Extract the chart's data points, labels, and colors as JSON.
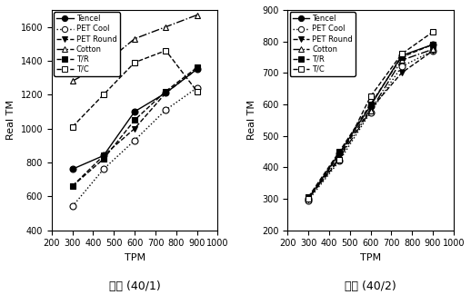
{
  "tpm": [
    300,
    450,
    600,
    750,
    900
  ],
  "left": {
    "title": "단사 (40/1)",
    "ylabel": "Real TM",
    "xlabel": "TPM",
    "ylim": [
      400,
      1700
    ],
    "yticks": [
      400,
      600,
      800,
      1000,
      1200,
      1400,
      1600
    ],
    "xlim": [
      200,
      1000
    ],
    "xticks": [
      200,
      300,
      400,
      500,
      600,
      700,
      800,
      900,
      1000
    ],
    "series": {
      "Tencel": {
        "y": [
          760,
          840,
          1100,
          1210,
          1350
        ],
        "marker": "o",
        "ms": 5,
        "mfc": "black",
        "mec": "black",
        "ls": "-",
        "lw": 1.0
      },
      "PET Cool": {
        "y": [
          540,
          760,
          930,
          1110,
          1240
        ],
        "marker": "o",
        "ms": 5,
        "mfc": "white",
        "mec": "black",
        "ls": ":",
        "lw": 1.0
      },
      "PET Round": {
        "y": [
          660,
          840,
          1000,
          1210,
          1350
        ],
        "marker": "v",
        "ms": 5,
        "mfc": "black",
        "mec": "black",
        "ls": "--",
        "lw": 1.0
      },
      "Cotton": {
        "y": [
          1280,
          1380,
          1530,
          1600,
          1670
        ],
        "marker": "^",
        "ms": 5,
        "mfc": "white",
        "mec": "black",
        "ls": "-.",
        "lw": 1.0
      },
      "T/R": {
        "y": [
          660,
          820,
          1050,
          1220,
          1360
        ],
        "marker": "s",
        "ms": 5,
        "mfc": "black",
        "mec": "black",
        "ls": "--",
        "lw": 1.0
      },
      "T/C": {
        "y": [
          1010,
          1200,
          1390,
          1460,
          1220
        ],
        "marker": "s",
        "ms": 5,
        "mfc": "white",
        "mec": "black",
        "ls": "--",
        "lw": 1.0
      }
    }
  },
  "right": {
    "title": "합사 (40/2)",
    "ylabel": "Real TM",
    "xlabel": "TPM",
    "ylim": [
      200,
      900
    ],
    "yticks": [
      200,
      300,
      400,
      500,
      600,
      700,
      800,
      900
    ],
    "xlim": [
      200,
      1000
    ],
    "xticks": [
      200,
      300,
      400,
      500,
      600,
      700,
      800,
      900,
      1000
    ],
    "series": {
      "Tencel": {
        "y": [
          300,
          445,
          595,
          755,
          790
        ],
        "marker": "o",
        "ms": 5,
        "mfc": "black",
        "mec": "black",
        "ls": "-",
        "lw": 1.0
      },
      "PET Cool": {
        "y": [
          295,
          420,
          575,
          720,
          770
        ],
        "marker": "o",
        "ms": 5,
        "mfc": "white",
        "mec": "black",
        "ls": ":",
        "lw": 1.0
      },
      "PET Round": {
        "y": [
          298,
          440,
          585,
          700,
          770
        ],
        "marker": "v",
        "ms": 5,
        "mfc": "black",
        "mec": "black",
        "ls": "--",
        "lw": 1.0
      },
      "Cotton": {
        "y": [
          302,
          430,
          580,
          740,
          775
        ],
        "marker": "^",
        "ms": 5,
        "mfc": "white",
        "mec": "black",
        "ls": "-.",
        "lw": 1.0
      },
      "T/R": {
        "y": [
          305,
          450,
          600,
          750,
          790
        ],
        "marker": "s",
        "ms": 5,
        "mfc": "black",
        "mec": "black",
        "ls": "--",
        "lw": 1.0
      },
      "T/C": {
        "y": [
          300,
          425,
          625,
          760,
          830
        ],
        "marker": "s",
        "ms": 5,
        "mfc": "white",
        "mec": "black",
        "ls": "--",
        "lw": 1.0
      }
    }
  },
  "legend_order": [
    "Tencel",
    "PET Cool",
    "PET Round",
    "Cotton",
    "T/R",
    "T/C"
  ],
  "legend_styles": {
    "Tencel": {
      "marker": "o",
      "mfc": "black",
      "mec": "black",
      "ls": "-"
    },
    "PET Cool": {
      "marker": "o",
      "mfc": "white",
      "mec": "black",
      "ls": ":"
    },
    "PET Round": {
      "marker": "v",
      "mfc": "black",
      "mec": "black",
      "ls": "--"
    },
    "Cotton": {
      "marker": "^",
      "mfc": "white",
      "mec": "black",
      "ls": "-."
    },
    "T/R": {
      "marker": "s",
      "mfc": "black",
      "mec": "black",
      "ls": "--"
    },
    "T/C": {
      "marker": "s",
      "mfc": "white",
      "mec": "black",
      "ls": "--"
    }
  }
}
